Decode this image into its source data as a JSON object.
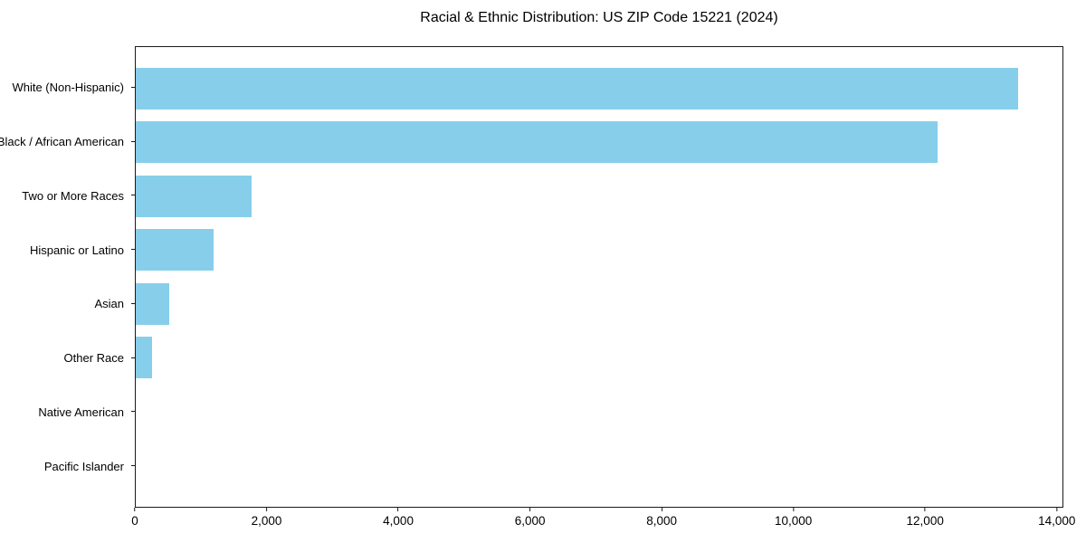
{
  "title": "Racial & Ethnic Distribution: US ZIP Code 15221 (2024)",
  "colors": {
    "bar": "#87CEEB",
    "axis": "#1a1a1a",
    "background": "#ffffff",
    "text": "#000000"
  },
  "chart_data": {
    "type": "bar",
    "orientation": "horizontal",
    "title": "Racial & Ethnic Distribution: US ZIP Code 15221 (2024)",
    "categories": [
      "White (Non-Hispanic)",
      "Black / African American",
      "Two or More Races",
      "Hispanic or Latino",
      "Asian",
      "Other Race",
      "Native American",
      "Pacific Islander"
    ],
    "values": [
      13430,
      12200,
      1760,
      1190,
      510,
      250,
      0,
      0
    ],
    "xlabel": "",
    "ylabel": "",
    "xlim": [
      0,
      14100
    ],
    "xticks": [
      0,
      2000,
      4000,
      6000,
      8000,
      10000,
      12000,
      14000
    ],
    "xtick_labels": [
      "0",
      "2,000",
      "4,000",
      "6,000",
      "8,000",
      "10,000",
      "12,000",
      "14,000"
    ],
    "grid": false,
    "legend_position": "none",
    "bar_color": "#87CEEB"
  }
}
